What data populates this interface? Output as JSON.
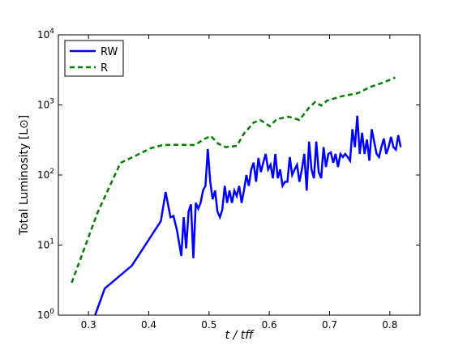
{
  "chart_data": {
    "type": "line",
    "xlabel": "t / tff",
    "ylabel": "Total Luminosity [L⊙]",
    "xlim": [
      0.25,
      0.85
    ],
    "xticks": [
      0.3,
      0.4,
      0.5,
      0.6,
      0.7,
      0.8
    ],
    "ylim": [
      1,
      10000
    ],
    "yticks": [
      {
        "value": 1,
        "label": "10^0"
      },
      {
        "value": 10,
        "label": "10^1"
      },
      {
        "value": 100,
        "label": "10^2"
      },
      {
        "value": 1000,
        "label": "10^3"
      },
      {
        "value": 10000,
        "label": "10^4"
      }
    ],
    "log_y": true,
    "legend": "upper left",
    "series": [
      {
        "name": "RW",
        "color": "#0000ff",
        "dash": false,
        "x": [
          0.308,
          0.327,
          0.372,
          0.42,
          0.428,
          0.436,
          0.441,
          0.447,
          0.454,
          0.458,
          0.462,
          0.466,
          0.47,
          0.474,
          0.478,
          0.482,
          0.486,
          0.49,
          0.494,
          0.498,
          0.502,
          0.506,
          0.51,
          0.514,
          0.518,
          0.522,
          0.526,
          0.53,
          0.534,
          0.538,
          0.542,
          0.546,
          0.55,
          0.554,
          0.558,
          0.562,
          0.566,
          0.57,
          0.574,
          0.578,
          0.582,
          0.586,
          0.59,
          0.594,
          0.598,
          0.602,
          0.606,
          0.61,
          0.614,
          0.618,
          0.622,
          0.626,
          0.63,
          0.634,
          0.638,
          0.642,
          0.646,
          0.65,
          0.654,
          0.658,
          0.662,
          0.666,
          0.67,
          0.674,
          0.678,
          0.682,
          0.686,
          0.69,
          0.694,
          0.698,
          0.702,
          0.706,
          0.71,
          0.714,
          0.718,
          0.722,
          0.726,
          0.73,
          0.734,
          0.738,
          0.742,
          0.746,
          0.75,
          0.754,
          0.758,
          0.762,
          0.766,
          0.77,
          0.774,
          0.778,
          0.782,
          0.786,
          0.79,
          0.794,
          0.798,
          0.802,
          0.806,
          0.81,
          0.814,
          0.818
        ],
        "values": [
          0.85,
          2.4,
          5.1,
          22,
          57,
          25,
          26,
          16,
          7,
          25,
          9,
          30,
          38,
          6.5,
          40,
          33,
          40,
          60,
          70,
          235,
          80,
          45,
          60,
          30,
          25,
          32,
          70,
          40,
          60,
          40,
          60,
          50,
          70,
          40,
          60,
          100,
          70,
          120,
          150,
          80,
          175,
          110,
          150,
          200,
          120,
          140,
          90,
          200,
          90,
          120,
          70,
          80,
          80,
          180,
          100,
          120,
          140,
          80,
          120,
          200,
          60,
          300,
          120,
          90,
          300,
          110,
          90,
          250,
          130,
          200,
          210,
          150,
          200,
          130,
          200,
          180,
          200,
          180,
          160,
          450,
          250,
          700,
          200,
          400,
          200,
          320,
          160,
          450,
          300,
          200,
          180,
          250,
          330,
          200,
          250,
          350,
          250,
          230,
          370,
          250
        ]
      },
      {
        "name": "R",
        "color": "#007f00",
        "dash": true,
        "x": [
          0.272,
          0.315,
          0.353,
          0.376,
          0.403,
          0.423,
          0.45,
          0.477,
          0.49,
          0.503,
          0.515,
          0.528,
          0.546,
          0.558,
          0.574,
          0.585,
          0.601,
          0.612,
          0.632,
          0.65,
          0.666,
          0.676,
          0.686,
          0.696,
          0.72,
          0.747,
          0.768,
          0.788,
          0.809
        ],
        "values": [
          2.9,
          29,
          149,
          185,
          240,
          268,
          270,
          268,
          320,
          360,
          280,
          250,
          260,
          390,
          560,
          610,
          495,
          625,
          680,
          610,
          910,
          1100,
          980,
          1150,
          1330,
          1470,
          1810,
          2070,
          2460
        ]
      }
    ]
  }
}
